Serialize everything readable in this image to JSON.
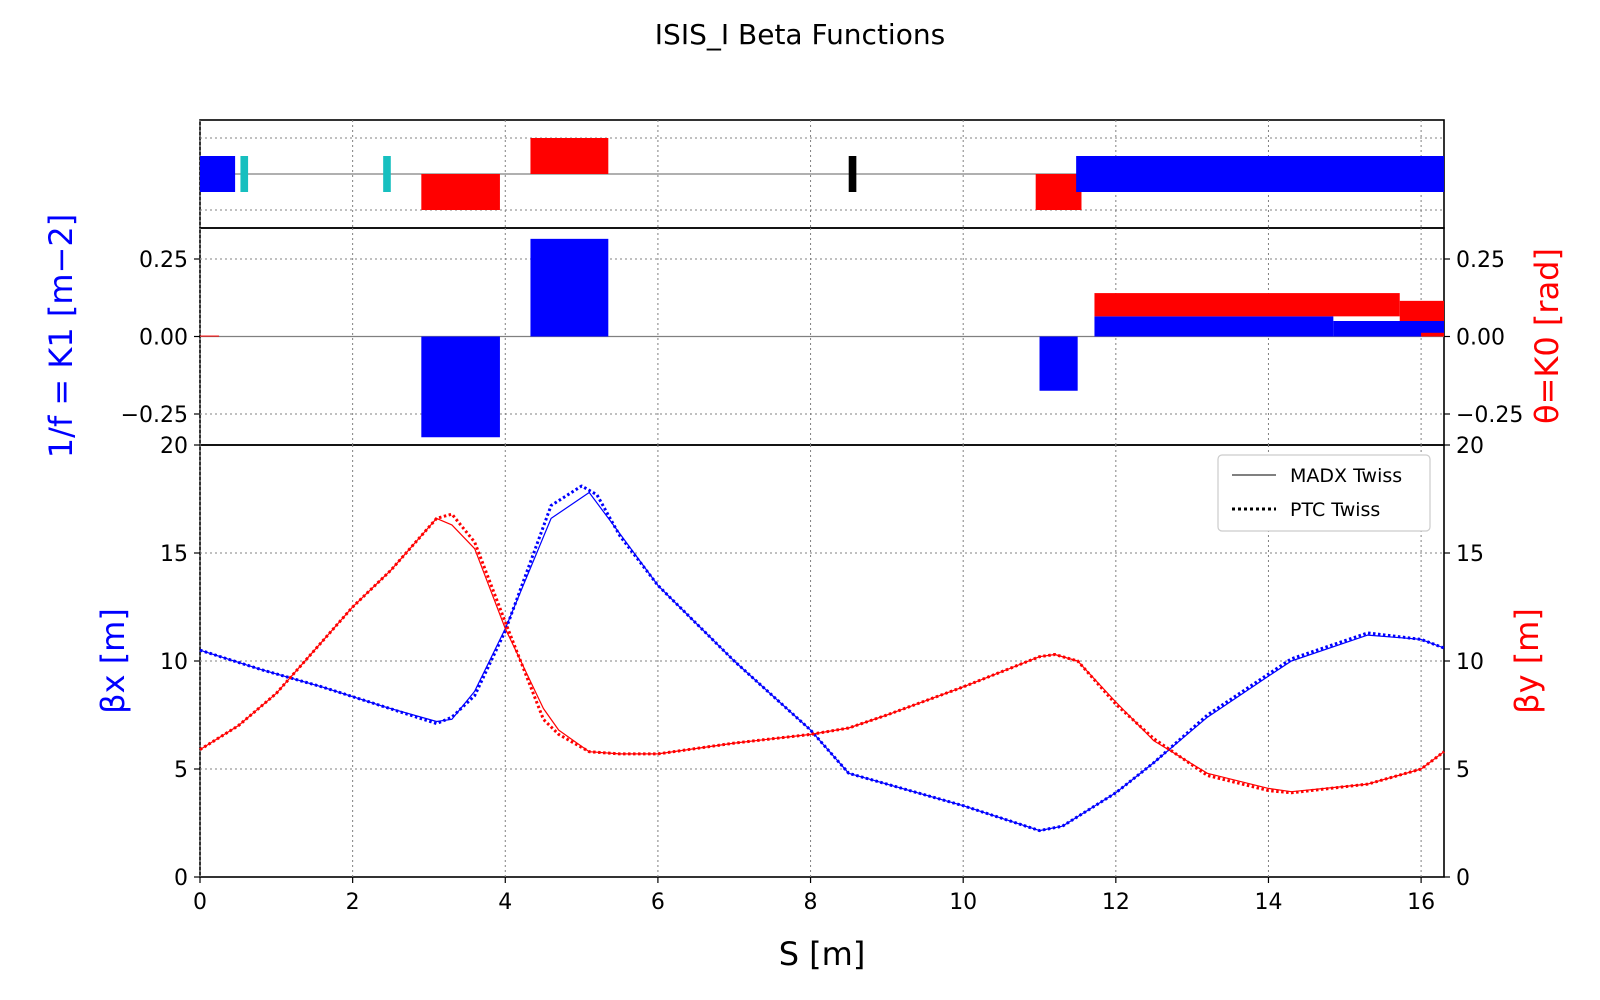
{
  "chart_data": {
    "type": "line",
    "title": "ISIS_I Beta Functions",
    "xlabel": "S [m]",
    "xlim": [
      0,
      16.3
    ],
    "xticks": [
      0,
      2,
      4,
      6,
      8,
      10,
      12,
      14,
      16
    ],
    "grid": true,
    "colors": {
      "x": "#0000ff",
      "y": "#ff0000",
      "cyan": "#17bfbf",
      "black": "#000000"
    },
    "layout_panel": {
      "markers": [
        {
          "color": "#0000ff",
          "x0": 0.0,
          "x1": 0.46,
          "pos": "center"
        },
        {
          "color": "#17bfbf",
          "x0": 0.53,
          "x1": 0.63,
          "pos": "center"
        },
        {
          "color": "#17bfbf",
          "x0": 2.4,
          "x1": 2.5,
          "pos": "center"
        },
        {
          "color": "#ff0000",
          "x0": 2.9,
          "x1": 3.93,
          "pos": "low"
        },
        {
          "color": "#ff0000",
          "x0": 4.33,
          "x1": 5.35,
          "pos": "high"
        },
        {
          "color": "#000000",
          "x0": 8.5,
          "x1": 8.6,
          "pos": "center"
        },
        {
          "color": "#ff0000",
          "x0": 10.95,
          "x1": 11.55,
          "pos": "low"
        },
        {
          "color": "#0000ff",
          "x0": 11.48,
          "x1": 16.3,
          "pos": "center"
        }
      ]
    },
    "strength_panel": {
      "ylabel_left": "1/f = K1 [m−2]",
      "ylabel_right": "θ=K0 [rad]",
      "ylim": [
        -0.35,
        0.35
      ],
      "yticks": [
        "0.25",
        "0.00",
        "−0.25"
      ],
      "blocks": [
        {
          "color": "#ff0000",
          "x0": 0.0,
          "x1": 0.25,
          "y": 0.003
        },
        {
          "color": "#0000ff",
          "x0": 2.9,
          "x1": 3.93,
          "y": -0.325
        },
        {
          "color": "#0000ff",
          "x0": 4.33,
          "x1": 5.35,
          "y": 0.315
        },
        {
          "color": "#0000ff",
          "x0": 11.0,
          "x1": 11.5,
          "y": -0.175
        },
        {
          "color": "#0000ff",
          "x0": 11.72,
          "x1": 14.85,
          "y": 0.065
        },
        {
          "color": "#0000ff",
          "x0": 14.85,
          "x1": 16.3,
          "y": 0.05
        },
        {
          "color": "#ff0000",
          "x0": 11.72,
          "x1": 15.72,
          "y": 0.14,
          "base": 0.065
        },
        {
          "color": "#ff0000",
          "x0": 15.72,
          "x1": 16.3,
          "y": 0.115,
          "base": 0.05
        },
        {
          "color": "#ff0000",
          "x0": 16.0,
          "x1": 16.3,
          "y": 0.012,
          "base": 0.0
        }
      ]
    },
    "beta_panel": {
      "ylabel_left": "βx [m]",
      "ylabel_right": "βy [m]",
      "ylim": [
        0,
        20
      ],
      "yticks": [
        "0",
        "5",
        "10",
        "15",
        "20"
      ],
      "legend": {
        "placement": "top-right",
        "entries": [
          "MADX Twiss",
          "PTC Twiss"
        ]
      },
      "series": [
        {
          "name": "MADX Twiss",
          "axis": "x",
          "style": "solid",
          "x": [
            0,
            0.8,
            1.6,
            2.4,
            3.1,
            3.3,
            3.6,
            4.0,
            4.6,
            5.1,
            5.5,
            6.0,
            7.0,
            8.0,
            8.5,
            9.0,
            10.0,
            11.0,
            11.3,
            12.0,
            12.5,
            13.2,
            14.0,
            14.3,
            15.3,
            16.0,
            16.3
          ],
          "y": [
            10.5,
            9.6,
            8.8,
            7.9,
            7.2,
            7.3,
            8.6,
            11.5,
            16.6,
            17.8,
            15.9,
            13.5,
            10.0,
            6.8,
            4.8,
            4.3,
            3.3,
            2.15,
            2.35,
            3.9,
            5.3,
            7.4,
            9.3,
            10.0,
            11.2,
            11.0,
            10.6
          ]
        },
        {
          "name": "PTC Twiss",
          "axis": "x",
          "style": "dotted",
          "x": [
            0,
            0.8,
            1.6,
            2.4,
            3.1,
            3.3,
            3.6,
            4.0,
            4.6,
            5.0,
            5.2,
            5.5,
            6.0,
            7.0,
            8.0,
            8.5,
            9.0,
            10.0,
            11.0,
            11.3,
            12.0,
            12.5,
            13.2,
            14.0,
            14.3,
            15.3,
            16.0,
            16.3
          ],
          "y": [
            10.5,
            9.6,
            8.8,
            7.9,
            7.1,
            7.4,
            8.4,
            11.4,
            17.2,
            18.1,
            17.7,
            15.8,
            13.5,
            10.0,
            6.8,
            4.8,
            4.3,
            3.3,
            2.15,
            2.35,
            3.9,
            5.3,
            7.5,
            9.4,
            10.1,
            11.3,
            11.0,
            10.6
          ]
        },
        {
          "name": "MADX Twiss",
          "axis": "y",
          "style": "solid",
          "x": [
            0,
            0.5,
            1.0,
            1.5,
            2.0,
            2.5,
            3.1,
            3.3,
            3.6,
            4.0,
            4.5,
            4.7,
            5.1,
            5.5,
            6.0,
            7.0,
            8.0,
            8.5,
            9.0,
            10.0,
            11.0,
            11.2,
            11.5,
            12.0,
            12.5,
            13.2,
            14.0,
            14.3,
            15.3,
            16.0,
            16.3
          ],
          "y": [
            5.9,
            7.0,
            8.5,
            10.5,
            12.5,
            14.2,
            16.6,
            16.3,
            15.2,
            11.5,
            7.8,
            6.8,
            5.8,
            5.7,
            5.7,
            6.2,
            6.6,
            6.9,
            7.5,
            8.8,
            10.2,
            10.3,
            10.0,
            8.1,
            6.3,
            4.8,
            4.1,
            3.95,
            4.3,
            5.0,
            5.8
          ]
        },
        {
          "name": "PTC Twiss",
          "axis": "y",
          "style": "dotted",
          "x": [
            0,
            0.5,
            1.0,
            1.5,
            2.0,
            2.5,
            3.1,
            3.3,
            3.6,
            4.0,
            4.5,
            4.7,
            5.1,
            5.5,
            6.0,
            7.0,
            8.0,
            8.5,
            9.0,
            10.0,
            11.0,
            11.2,
            11.5,
            12.0,
            12.5,
            13.2,
            14.0,
            14.3,
            15.3,
            16.0,
            16.3
          ],
          "y": [
            5.9,
            7.0,
            8.5,
            10.5,
            12.5,
            14.2,
            16.6,
            16.8,
            15.5,
            11.8,
            7.3,
            6.6,
            5.8,
            5.7,
            5.7,
            6.2,
            6.6,
            6.9,
            7.5,
            8.8,
            10.2,
            10.3,
            10.0,
            8.0,
            6.4,
            4.7,
            4.0,
            3.9,
            4.3,
            5.0,
            5.8
          ]
        }
      ]
    }
  }
}
